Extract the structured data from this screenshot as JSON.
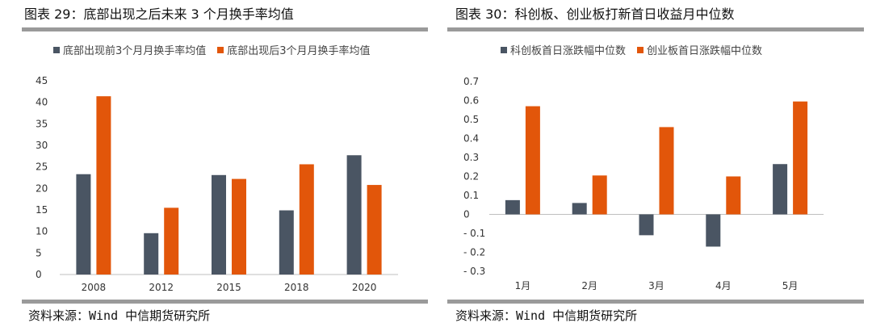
{
  "colors": {
    "series_dark": "#4a5563",
    "series_orange": "#e2560a",
    "axis": "#bfbfbf"
  },
  "source_text": "资料来源：Wind  中信期货研究所",
  "chart_data": [
    {
      "type": "bar",
      "title": "图表 29：底部出现之后未来 3 个月换手率均值",
      "categories": [
        "2008",
        "2012",
        "2015",
        "2018",
        "2020"
      ],
      "series": [
        {
          "name": "底部出现前3个月月换手率均值",
          "values": [
            23.3,
            9.6,
            23.1,
            14.9,
            27.7
          ]
        },
        {
          "name": "底部出现后3个月月换手率均值",
          "values": [
            41.4,
            15.5,
            22.2,
            25.6,
            20.8
          ]
        }
      ],
      "yticks": [
        "0",
        "5",
        "10",
        "15",
        "20",
        "25",
        "30",
        "35",
        "40",
        "45"
      ],
      "ylim": [
        0,
        45
      ],
      "legend": "top-left",
      "grid": false
    },
    {
      "type": "bar",
      "title": "图表 30：科创板、创业板打新首日收益月中位数",
      "categories": [
        "1月",
        "2月",
        "3月",
        "4月",
        "5月"
      ],
      "series": [
        {
          "name": "科创板首日涨跌幅中位数",
          "values": [
            0.075,
            0.06,
            -0.11,
            -0.17,
            0.265
          ]
        },
        {
          "name": "创业板首日涨跌幅中位数",
          "values": [
            0.57,
            0.205,
            0.46,
            0.2,
            0.595
          ]
        }
      ],
      "yticks": [
        "0.7",
        "0.6",
        "0.5",
        "0.4",
        "0.3",
        "0.2",
        "0.1",
        "0",
        "- 0.1",
        "- 0.2",
        "- 0.3"
      ],
      "ylim": [
        -0.3,
        0.7
      ],
      "legend": "top-left",
      "grid": false
    }
  ]
}
